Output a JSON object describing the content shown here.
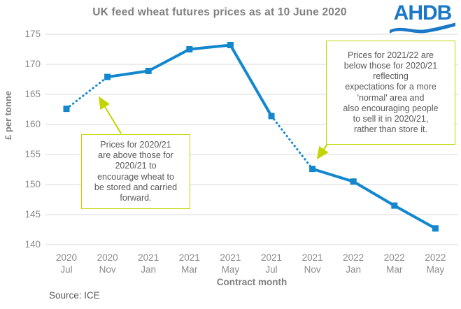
{
  "header": {
    "title": "UK feed wheat futures prices as at 10 June 2020",
    "logo_text": "AHDB"
  },
  "chart_data": {
    "type": "line",
    "title": "UK feed wheat futures prices as at 10 June 2020",
    "xlabel": "Contract month",
    "ylabel": "£ per tonne",
    "ylim": [
      140,
      175
    ],
    "yticks": [
      140,
      145,
      150,
      155,
      160,
      165,
      170,
      175
    ],
    "grid": true,
    "legend_position": "none",
    "categories": [
      [
        "2020",
        "Jul"
      ],
      [
        "2020",
        "Nov"
      ],
      [
        "2021",
        "Jan"
      ],
      [
        "2021",
        "Mar"
      ],
      [
        "2021",
        "May"
      ],
      [
        "2021",
        "Jul"
      ],
      [
        "2021",
        "Nov"
      ],
      [
        "2022",
        "Jan"
      ],
      [
        "2022",
        "Mar"
      ],
      [
        "2022",
        "May"
      ]
    ],
    "series": [
      {
        "name": "UK feed wheat futures price",
        "marker": "square",
        "values": [
          162.6,
          167.9,
          168.9,
          172.5,
          173.2,
          161.4,
          152.6,
          150.5,
          146.5,
          142.7
        ]
      }
    ],
    "segments": [
      {
        "from": 0,
        "to": 1,
        "style": "dotted"
      },
      {
        "from": 1,
        "to": 5,
        "style": "solid"
      },
      {
        "from": 5,
        "to": 6,
        "style": "dotted"
      },
      {
        "from": 6,
        "to": 9,
        "style": "solid"
      }
    ],
    "annotations": [
      {
        "lines": [
          "Prices for 2020/21",
          "are above those for",
          "2020/21 to",
          "encourage wheat to",
          "be stored and carried",
          "forward."
        ]
      },
      {
        "lines": [
          "Prices for 2021/22 are",
          "below those for 2020/21",
          "reflecting",
          "expectations for a more",
          "'normal' area and",
          "also encouraging people",
          "to sell it in 2020/21,",
          "rather than store it."
        ]
      }
    ]
  },
  "footer": {
    "source": "Source: ICE"
  },
  "colors": {
    "series_blue": "#1287ce",
    "annotation_lime": "#c2d500",
    "gridline_gray": "#d9d9d9",
    "title_gray": "#7f7f7f",
    "tick_gray": "#8c8c8c",
    "text_gray": "#595959",
    "logo_blue": "#1a78c6"
  }
}
